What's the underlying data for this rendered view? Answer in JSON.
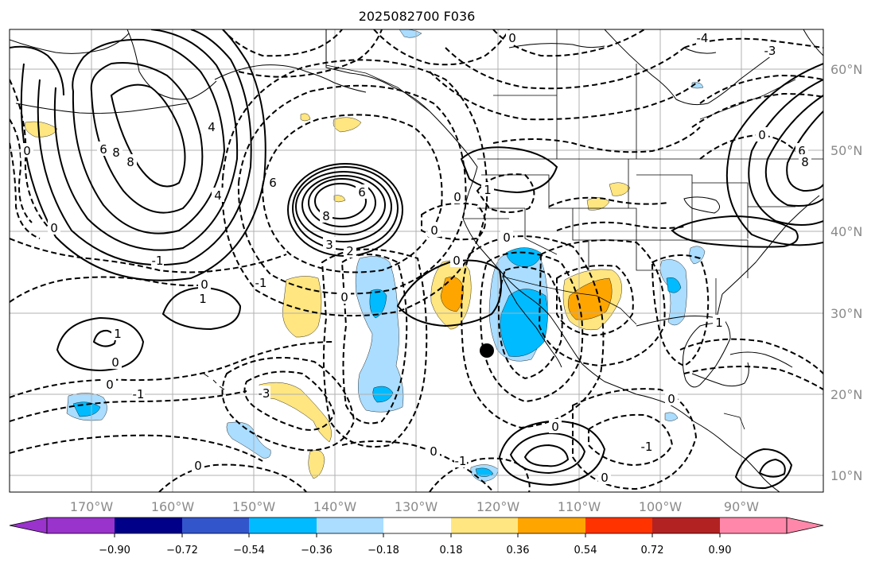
{
  "title": "2025082700 F036",
  "longitude_labels": [
    "170°W",
    "160°W",
    "150°W",
    "140°W",
    "130°W",
    "120°W",
    "110°W",
    "100°W",
    "90°W"
  ],
  "latitude_labels": [
    "60°N",
    "50°N",
    "40°N",
    "30°N",
    "20°N",
    "10°N"
  ],
  "colorbar": {
    "tick_labels": [
      "−0.90",
      "−0.72",
      "−0.54",
      "−0.36",
      "−0.18",
      "0.18",
      "0.36",
      "0.54",
      "0.72",
      "0.90"
    ],
    "colors": [
      "#9933cc",
      "#000088",
      "#3355cc",
      "#00bbff",
      "#aaddff",
      "#ffffff",
      "#ffe680",
      "#ffa500",
      "#ff3300",
      "#b22222",
      "#ff88aa"
    ]
  },
  "shading_colors": {
    "light_blue": "#aaddff",
    "blue": "#00bbff",
    "light_yellow": "#ffe680",
    "orange": "#ffa500"
  },
  "contour_labels": [
    "0",
    "-1",
    "-2",
    "-3",
    "-4",
    "1",
    "2",
    "3",
    "4",
    "6",
    "8"
  ],
  "marker": {
    "lon": -120.5,
    "lat": 25.3,
    "shape": "filled circle"
  }
}
